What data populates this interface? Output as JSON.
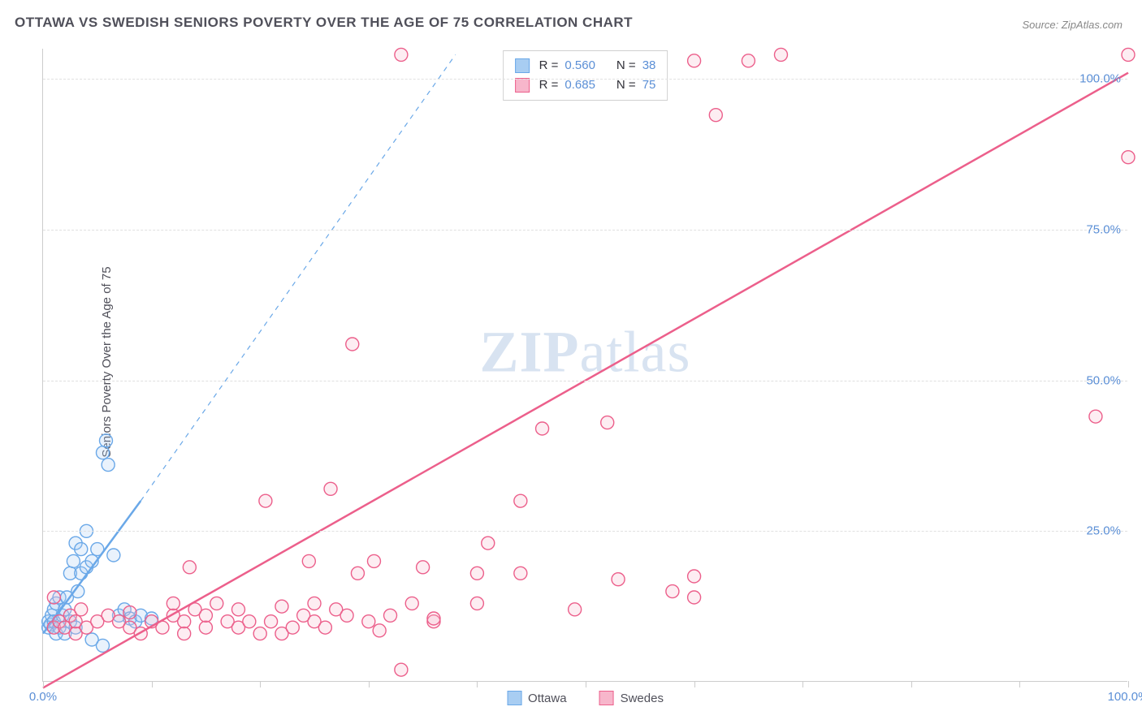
{
  "title": "OTTAWA VS SWEDISH SENIORS POVERTY OVER THE AGE OF 75 CORRELATION CHART",
  "source": "Source: ZipAtlas.com",
  "y_axis_label": "Seniors Poverty Over the Age of 75",
  "watermark": {
    "bold": "ZIP",
    "rest": "atlas"
  },
  "chart": {
    "type": "scatter",
    "background_color": "#ffffff",
    "grid_color": "#e0e0e0",
    "axis_color": "#cccccc",
    "xlim": [
      0,
      100
    ],
    "ylim": [
      0,
      105
    ],
    "xticks": [
      0,
      10,
      20,
      30,
      40,
      50,
      60,
      70,
      80,
      90,
      100
    ],
    "yticks": [
      25,
      50,
      75,
      100
    ],
    "xtick_labels": {
      "0": "0.0%",
      "100": "100.0%"
    },
    "ytick_labels": {
      "25": "25.0%",
      "50": "50.0%",
      "75": "75.0%",
      "100": "100.0%"
    },
    "tick_label_color": "#5b8fd6",
    "marker_radius": 8,
    "marker_stroke_width": 1.4,
    "marker_fill_opacity": 0.25,
    "series": [
      {
        "name": "Ottawa",
        "color": "#6aa8e8",
        "fill": "#a8cdf2",
        "regression": {
          "x1": 0,
          "y1": 8,
          "x2": 9,
          "y2": 30,
          "style": "solid",
          "extended_x2": 38,
          "extended_y2": 104
        },
        "r": 0.56,
        "n": 38,
        "points": [
          [
            0.5,
            9
          ],
          [
            0.5,
            10
          ],
          [
            0.7,
            9.5
          ],
          [
            0.8,
            11
          ],
          [
            1,
            12
          ],
          [
            1,
            10
          ],
          [
            1.2,
            8
          ],
          [
            1.2,
            13
          ],
          [
            1.5,
            9
          ],
          [
            1.5,
            14
          ],
          [
            1.8,
            11
          ],
          [
            2,
            12
          ],
          [
            2,
            8
          ],
          [
            2.2,
            14
          ],
          [
            2.5,
            18
          ],
          [
            2.5,
            10
          ],
          [
            2.8,
            20
          ],
          [
            3,
            23
          ],
          [
            3,
            9
          ],
          [
            3.2,
            15
          ],
          [
            3.5,
            18
          ],
          [
            3.5,
            22
          ],
          [
            4,
            19
          ],
          [
            4,
            25
          ],
          [
            4.5,
            7
          ],
          [
            4.5,
            20
          ],
          [
            5,
            22
          ],
          [
            5.5,
            6
          ],
          [
            5.5,
            38
          ],
          [
            5.8,
            40
          ],
          [
            6,
            36
          ],
          [
            6.5,
            21
          ],
          [
            7,
            11
          ],
          [
            7.5,
            12
          ],
          [
            8,
            10.5
          ],
          [
            8.5,
            10
          ],
          [
            9,
            11
          ],
          [
            10,
            10.5
          ]
        ]
      },
      {
        "name": "Swedes",
        "color": "#ec5f8b",
        "fill": "#f7b6cb",
        "regression": {
          "x1": 0,
          "y1": -1,
          "x2": 100,
          "y2": 101,
          "style": "solid"
        },
        "r": 0.685,
        "n": 75,
        "points": [
          [
            1,
            9
          ],
          [
            1,
            14
          ],
          [
            1.5,
            10
          ],
          [
            2,
            9
          ],
          [
            2.5,
            11
          ],
          [
            3,
            8
          ],
          [
            3,
            10
          ],
          [
            3.5,
            12
          ],
          [
            4,
            9
          ],
          [
            5,
            10
          ],
          [
            6,
            11
          ],
          [
            7,
            10
          ],
          [
            8,
            9
          ],
          [
            8,
            11.5
          ],
          [
            9,
            8
          ],
          [
            10,
            10
          ],
          [
            11,
            9
          ],
          [
            12,
            11
          ],
          [
            12,
            13
          ],
          [
            13,
            10
          ],
          [
            13.5,
            19
          ],
          [
            14,
            12
          ],
          [
            15,
            9
          ],
          [
            15,
            11
          ],
          [
            16,
            13
          ],
          [
            17,
            10
          ],
          [
            18,
            9
          ],
          [
            18,
            12
          ],
          [
            19,
            10
          ],
          [
            20,
            8
          ],
          [
            20.5,
            30
          ],
          [
            21,
            10
          ],
          [
            22,
            8
          ],
          [
            22,
            12.5
          ],
          [
            23,
            9
          ],
          [
            24,
            11
          ],
          [
            24.5,
            20
          ],
          [
            25,
            10
          ],
          [
            25,
            13
          ],
          [
            26,
            9
          ],
          [
            26.5,
            32
          ],
          [
            27,
            12
          ],
          [
            28,
            11
          ],
          [
            28.5,
            56
          ],
          [
            29,
            18
          ],
          [
            30,
            10
          ],
          [
            30.5,
            20
          ],
          [
            31,
            8.5
          ],
          [
            32,
            11
          ],
          [
            33,
            2
          ],
          [
            33,
            104
          ],
          [
            34,
            13
          ],
          [
            35,
            19
          ],
          [
            36,
            10
          ],
          [
            40,
            13
          ],
          [
            40,
            18
          ],
          [
            41,
            23
          ],
          [
            44,
            30
          ],
          [
            44,
            18
          ],
          [
            46,
            42
          ],
          [
            49,
            12
          ],
          [
            52,
            43
          ],
          [
            53,
            17
          ],
          [
            60,
            17.5
          ],
          [
            60,
            14
          ],
          [
            60,
            103
          ],
          [
            62,
            94
          ],
          [
            65,
            103
          ],
          [
            68,
            104
          ],
          [
            97,
            44
          ],
          [
            100,
            87
          ],
          [
            100,
            104
          ],
          [
            58,
            15
          ],
          [
            36,
            10.5
          ],
          [
            13,
            8
          ]
        ]
      }
    ]
  },
  "legend_top": [
    {
      "swatch_fill": "#a8cdf2",
      "swatch_stroke": "#6aa8e8",
      "r_label": "R =",
      "r_value": "0.560",
      "n_label": "N =",
      "n_value": "38"
    },
    {
      "swatch_fill": "#f7b6cb",
      "swatch_stroke": "#ec5f8b",
      "r_label": "R =",
      "r_value": "0.685",
      "n_label": "N =",
      "n_value": "75"
    }
  ],
  "legend_bottom": [
    {
      "swatch_fill": "#a8cdf2",
      "swatch_stroke": "#6aa8e8",
      "label": "Ottawa"
    },
    {
      "swatch_fill": "#f7b6cb",
      "swatch_stroke": "#ec5f8b",
      "label": "Swedes"
    }
  ]
}
